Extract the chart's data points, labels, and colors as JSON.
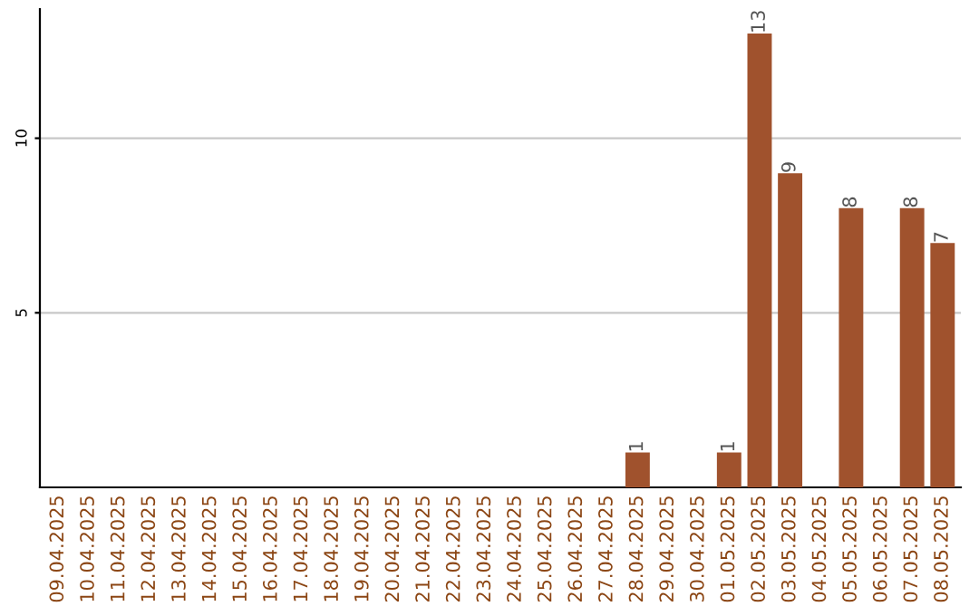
{
  "chart_data": {
    "type": "bar",
    "categories": [
      "09.04.2025",
      "10.04.2025",
      "11.04.2025",
      "12.04.2025",
      "13.04.2025",
      "14.04.2025",
      "15.04.2025",
      "16.04.2025",
      "17.04.2025",
      "18.04.2025",
      "19.04.2025",
      "20.04.2025",
      "21.04.2025",
      "22.04.2025",
      "23.04.2025",
      "24.04.2025",
      "25.04.2025",
      "26.04.2025",
      "27.04.2025",
      "28.04.2025",
      "29.04.2025",
      "30.04.2025",
      "01.05.2025",
      "02.05.2025",
      "03.05.2025",
      "04.05.2025",
      "05.05.2025",
      "06.05.2025",
      "07.05.2025",
      "08.05.2025"
    ],
    "values": [
      0,
      0,
      0,
      0,
      0,
      0,
      0,
      0,
      0,
      0,
      0,
      0,
      0,
      0,
      0,
      0,
      0,
      0,
      0,
      1,
      0,
      0,
      1,
      13,
      9,
      0,
      8,
      0,
      8,
      7
    ],
    "value_labels": [
      null,
      null,
      null,
      null,
      null,
      null,
      null,
      null,
      null,
      null,
      null,
      null,
      null,
      null,
      null,
      null,
      null,
      null,
      null,
      "1",
      null,
      null,
      "1",
      "13",
      "9",
      null,
      "8",
      null,
      "8",
      "7"
    ],
    "color": "#a0522d",
    "ylim": [
      0,
      13.7
    ],
    "yticks": [
      5,
      10
    ],
    "grid": "y"
  }
}
